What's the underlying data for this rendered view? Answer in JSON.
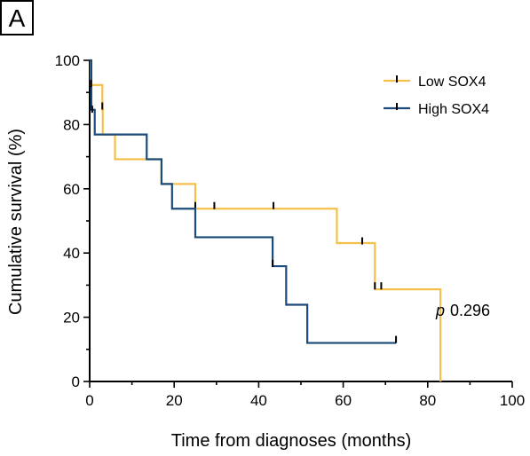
{
  "panel_label": "A",
  "chart_data": {
    "type": "line",
    "subtype": "kaplan-meier",
    "xlabel": "Time from diagnoses (months)",
    "ylabel": "Cumulative survival (%)",
    "xlim": [
      0,
      100
    ],
    "ylim": [
      0,
      100
    ],
    "xticks": [
      0,
      20,
      40,
      60,
      80,
      100
    ],
    "yticks": [
      0,
      20,
      40,
      60,
      80,
      100
    ],
    "legend_position": "top-right",
    "annotation": {
      "italic": "p",
      "text": "0.296"
    },
    "series": [
      {
        "name": "Low SOX4",
        "color": "#F5C04A",
        "steps": [
          {
            "x": 0,
            "y": 100
          },
          {
            "x": 0.3,
            "y": 92.3
          },
          {
            "x": 3,
            "y": 84.6
          },
          {
            "x": 3.1,
            "y": 76.9
          },
          {
            "x": 6,
            "y": 69.2
          },
          {
            "x": 17,
            "y": 61.5
          },
          {
            "x": 25,
            "y": 53.8
          },
          {
            "x": 58.5,
            "y": 43.1
          },
          {
            "x": 67.5,
            "y": 28.7
          },
          {
            "x": 83,
            "y": 0
          }
        ],
        "censors": [
          {
            "x": 3,
            "y": 85.5
          },
          {
            "x": 25,
            "y": 54.5
          },
          {
            "x": 29.5,
            "y": 54.5
          },
          {
            "x": 43.5,
            "y": 54.5
          },
          {
            "x": 64.5,
            "y": 43.5
          },
          {
            "x": 67.5,
            "y": 29.5
          },
          {
            "x": 69,
            "y": 29.5
          }
        ]
      },
      {
        "name": "High SOX4",
        "color": "#1B4B7A",
        "steps": [
          {
            "x": 0,
            "y": 100
          },
          {
            "x": 0.4,
            "y": 84.6
          },
          {
            "x": 1.2,
            "y": 76.9
          },
          {
            "x": 13.5,
            "y": 69.2
          },
          {
            "x": 17,
            "y": 61.5
          },
          {
            "x": 19.5,
            "y": 53.8
          },
          {
            "x": 25,
            "y": 44.9
          },
          {
            "x": 43.3,
            "y": 35.9
          },
          {
            "x": 46.5,
            "y": 23.9
          },
          {
            "x": 51.5,
            "y": 12
          },
          {
            "x": 72.5,
            "y": 12
          }
        ],
        "censors": [
          {
            "x": 0.3,
            "y": 92.5
          },
          {
            "x": 0.6,
            "y": 84.5
          },
          {
            "x": 43.3,
            "y": 36.5
          },
          {
            "x": 72.5,
            "y": 12.8
          }
        ]
      }
    ]
  }
}
